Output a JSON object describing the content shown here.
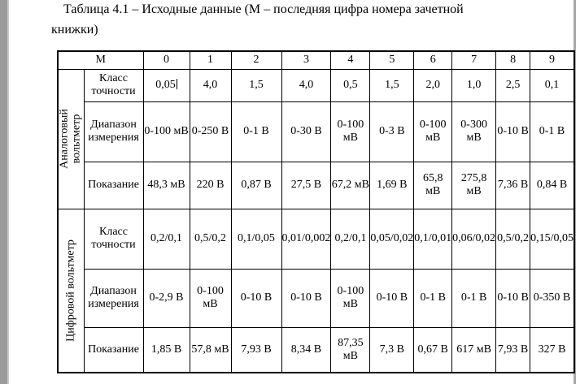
{
  "page": {
    "background": "#ffffff",
    "left_edge_color": "#9b9b9b",
    "right_edge_color": "#a8a8a8",
    "caption": {
      "line1": "Таблица 4.1 – Исходные данные (М – последняя цифра номера зачетной",
      "line2": "книжки)"
    }
  },
  "table": {
    "header_label": "М",
    "columns": [
      "0",
      "1",
      "2",
      "3",
      "4",
      "5",
      "6",
      "7",
      "8",
      "9"
    ],
    "sections": [
      {
        "name": "Аналоговый вольтметр",
        "rows": [
          {
            "label": "Класс точности",
            "values": [
              "0,05",
              "4,0",
              "1,5",
              "4,0",
              "0,5",
              "1,5",
              "2,0",
              "1,0",
              "2,5",
              "0,1"
            ]
          },
          {
            "label": "Диапазон измерения",
            "values": [
              "0-100 мВ",
              "0-250 В",
              "0-1 В",
              "0-30 В",
              "0-100 мВ",
              "0-3 В",
              "0-100 мВ",
              "0-300 мВ",
              "0-10 В",
              "0-1 В"
            ]
          },
          {
            "label": "Показание",
            "values": [
              "48,3 мВ",
              "220 В",
              "0,87 В",
              "27,5 В",
              "67,2 мВ",
              "1,69 В",
              "65,8 мВ",
              "275,8 мВ",
              "7,36 В",
              "0,84 В"
            ]
          }
        ]
      },
      {
        "name": "Цифровой вольтметр",
        "rows": [
          {
            "label": "Класс точности",
            "values": [
              "0,2/0,1",
              "0,5/0,2",
              "0,1/0,05",
              "0,01/0,002",
              "0,2/0,1",
              "0,05/0,02",
              "0,1/0,01",
              "0,06/0,02",
              "0,5/0,2",
              "0,15/0,05"
            ]
          },
          {
            "label": "Диапазон измерения",
            "values": [
              "0-2,9 В",
              "0-100 мВ",
              "0-10 В",
              "0-10 В",
              "0-100 мВ",
              "0-10 В",
              "0-1 В",
              "0-1 В",
              "0-10 В",
              "0-350 В"
            ]
          },
          {
            "label": "Показание",
            "values": [
              "1,85 В",
              "57,8 мВ",
              "7,93 В",
              "8,34 В",
              "87,35 мВ",
              "7,3 В",
              "0,67 В",
              "617 мВ",
              "7,93 В",
              "327 В"
            ]
          }
        ]
      }
    ],
    "text_cursor": {
      "section": 0,
      "row": 0,
      "col": 0
    }
  }
}
